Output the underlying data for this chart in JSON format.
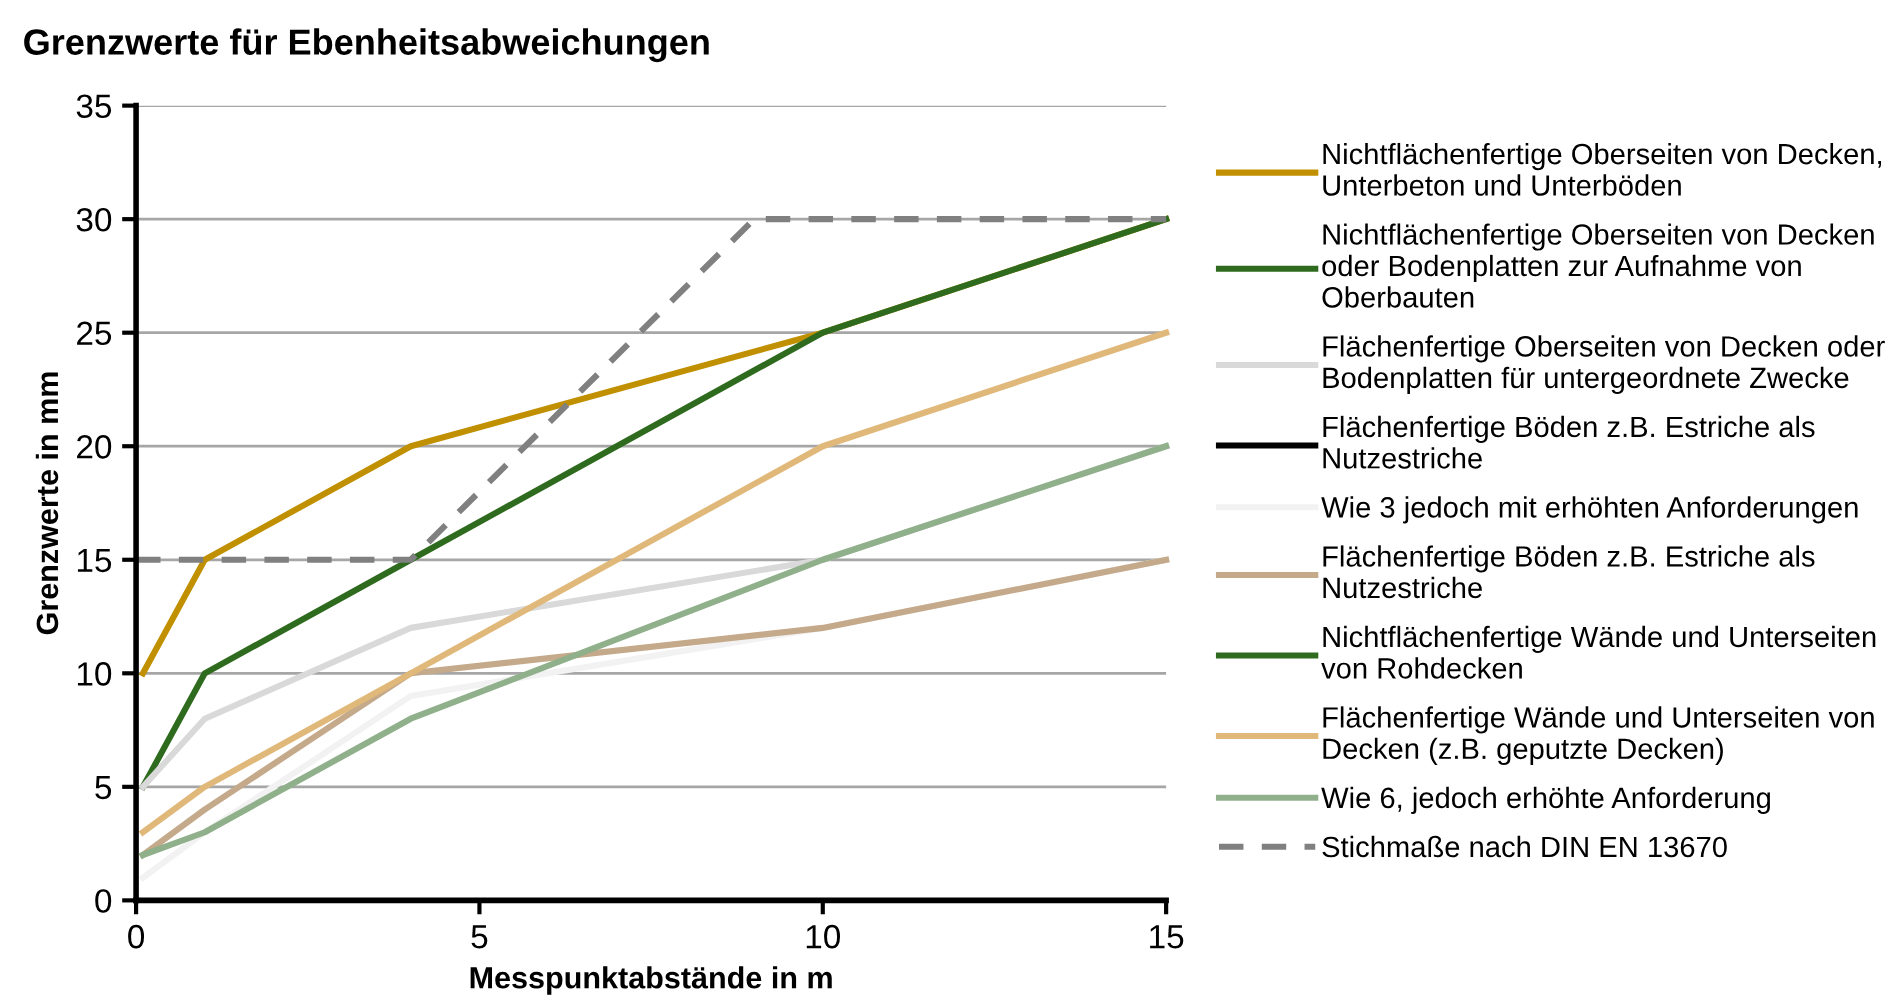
{
  "chart_data": {
    "type": "line",
    "title": "Grenzwerte für Ebenheitsabweichungen",
    "xlabel": "Messpunktabstände in m",
    "ylabel": "Grenzwerte in mm",
    "x": [
      0.1,
      1,
      4,
      10,
      15
    ],
    "xlim": [
      0,
      15
    ],
    "xticks": [
      0,
      5,
      10,
      15
    ],
    "ylim": [
      0,
      35
    ],
    "yticks": [
      0,
      5,
      10,
      15,
      20,
      25,
      30,
      35
    ],
    "grid": "y",
    "legend": "right",
    "marker": "none",
    "line_style": "solid",
    "series": [
      {
        "name": "Nichtflächenfertige Oberseiten von Decken, Unterbeton und Unterböden",
        "color": "#c09000",
        "values": [
          10,
          15,
          20,
          25,
          30
        ]
      },
      {
        "name": "Nichtflächenfertige Oberseiten von Decken oder Bodenplatten zur Aufnahme von Oberbauten",
        "color": "#2e6b1e",
        "values": [
          5,
          10,
          15,
          25,
          30
        ]
      },
      {
        "name": "Flächenfertige Oberseiten von Decken oder Bodenplatten für untergeordnete Zwecke",
        "color": "#d9d9d9",
        "values": [
          5,
          8,
          12,
          15,
          20
        ]
      },
      {
        "name": "Flächenfertige Böden z.B. Estriche als Nutzestriche",
        "color": "#000000",
        "values": [
          null,
          null,
          null,
          null,
          null
        ]
      },
      {
        "name": "Wie 3 jedoch mit erhöhten Anforderungen",
        "color": "#f2f2f2",
        "values": [
          1,
          3,
          9,
          12,
          15
        ]
      },
      {
        "name": "Flächenfertige Böden z.B. Estriche als Nutzestriche",
        "color": "#c4a98a",
        "values": [
          2,
          4,
          10,
          12,
          15
        ]
      },
      {
        "name": "Nichtflächenfertige Wände und Unterseiten von Rohdecken",
        "color": "#2e6b1e",
        "values": [
          null,
          null,
          null,
          null,
          null
        ]
      },
      {
        "name": "Flächenfertige Wände und Unterseiten von Decken (z.B. geputzte Decken)",
        "color": "#e0b87a",
        "values": [
          3,
          5,
          10,
          20,
          25
        ]
      },
      {
        "name": "Wie 6, jedoch erhöhte Anforderung",
        "color": "#8fb08a",
        "values": [
          2,
          3,
          8,
          15,
          20
        ]
      },
      {
        "name": "Stichmaße nach DIN EN 13670",
        "color": "#808080",
        "line_style": "dashed",
        "x": [
          0,
          4,
          9,
          15
        ],
        "values": [
          15,
          15,
          30,
          30
        ]
      }
    ]
  }
}
